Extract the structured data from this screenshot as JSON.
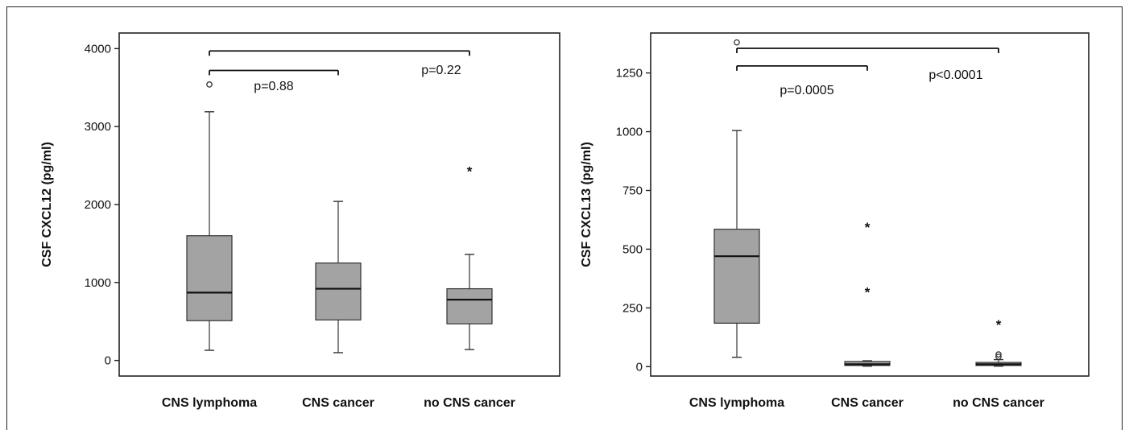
{
  "chart_data": [
    {
      "type": "box",
      "ylabel": "CSF CXCL12 (pg/ml)",
      "categories": [
        "CNS lymphoma",
        "CNS cancer",
        "no CNS cancer"
      ],
      "ylim": [
        -200,
        4200
      ],
      "yticks": [
        0,
        1000,
        2000,
        3000,
        4000
      ],
      "boxes": [
        {
          "category": "CNS lymphoma",
          "whisker_low": 130,
          "q1": 510,
          "median": 870,
          "q3": 1600,
          "whisker_high": 3190
        },
        {
          "category": "CNS cancer",
          "whisker_low": 100,
          "q1": 520,
          "median": 920,
          "q3": 1250,
          "whisker_high": 2040
        },
        {
          "category": "no CNS cancer",
          "whisker_low": 140,
          "q1": 470,
          "median": 780,
          "q3": 920,
          "whisker_high": 1360
        }
      ],
      "outliers": [
        {
          "category": "CNS lymphoma",
          "value": 3540,
          "marker": "circle"
        },
        {
          "category": "no CNS cancer",
          "value": 2440,
          "marker": "star"
        }
      ],
      "annotations": [
        {
          "from": "CNS lymphoma",
          "to": "CNS cancer",
          "text": "p=0.88",
          "bar_y": 3720
        },
        {
          "from": "CNS lymphoma",
          "to": "no CNS cancer",
          "text": "p=0.22",
          "bar_y": 3970
        }
      ]
    },
    {
      "type": "box",
      "ylabel": "CSF CXCL13 (pg/ml)",
      "categories": [
        "CNS lymphoma",
        "CNS cancer",
        "no CNS cancer"
      ],
      "ylim": [
        -40,
        1420
      ],
      "yticks": [
        0,
        250,
        500,
        750,
        1000,
        1250
      ],
      "boxes": [
        {
          "category": "CNS lymphoma",
          "whisker_low": 40,
          "q1": 185,
          "median": 470,
          "q3": 585,
          "whisker_high": 1005
        },
        {
          "category": "CNS cancer",
          "whisker_low": 2,
          "q1": 5,
          "median": 10,
          "q3": 22,
          "whisker_high": 25
        },
        {
          "category": "no CNS cancer",
          "whisker_low": 2,
          "q1": 5,
          "median": 10,
          "q3": 18,
          "whisker_high": 30
        }
      ],
      "outliers": [
        {
          "category": "CNS lymphoma",
          "value": 1380,
          "marker": "circle"
        },
        {
          "category": "CNS cancer",
          "value": 598,
          "marker": "star"
        },
        {
          "category": "CNS cancer",
          "value": 322,
          "marker": "star"
        },
        {
          "category": "no CNS cancer",
          "value": 182,
          "marker": "star"
        },
        {
          "category": "no CNS cancer",
          "value": 52,
          "marker": "circle"
        },
        {
          "category": "no CNS cancer",
          "value": 42,
          "marker": "circle"
        }
      ],
      "annotations": [
        {
          "from": "CNS lymphoma",
          "to": "CNS cancer",
          "text": "p=0.0005",
          "bar_y": 1280
        },
        {
          "from": "CNS lymphoma",
          "to": "no CNS cancer",
          "text": "p<0.0001",
          "bar_y": 1355
        }
      ]
    }
  ]
}
